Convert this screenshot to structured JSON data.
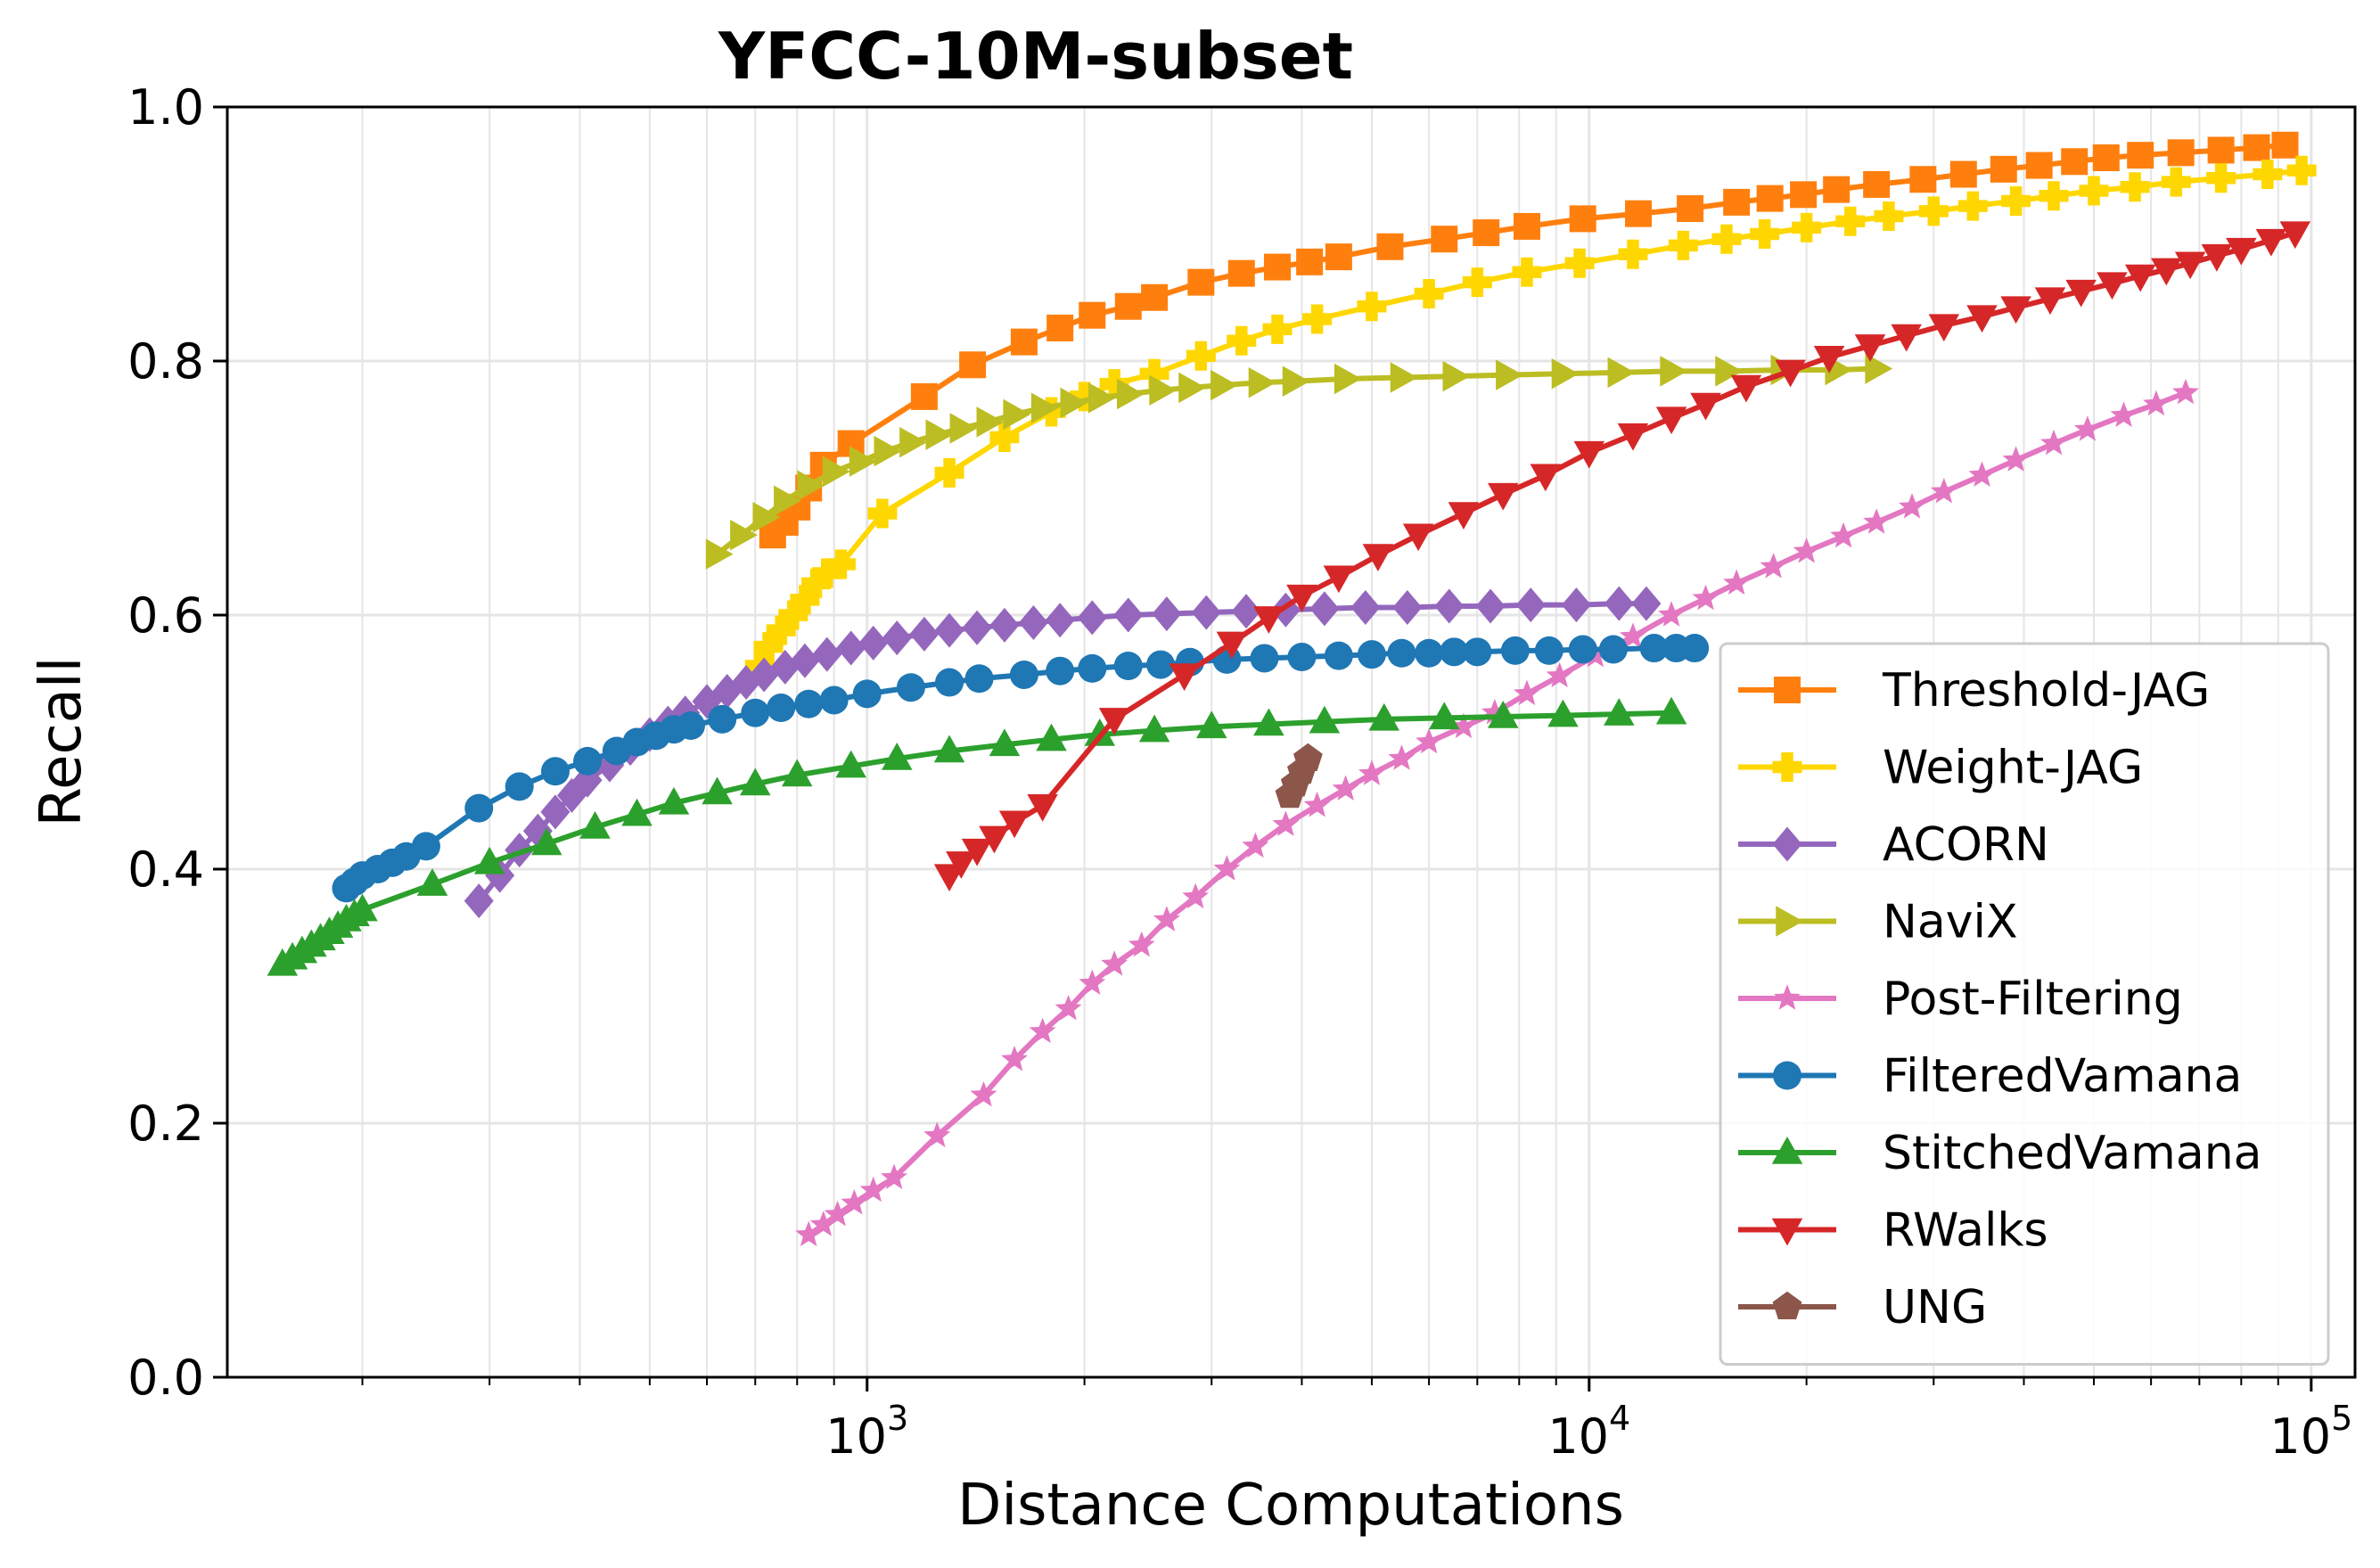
{
  "chart_data": {
    "type": "line",
    "title": "YFCC-10M-subset",
    "xlabel": "Distance Computations",
    "ylabel": "Recall",
    "xscale": "log",
    "xlim": [
      130,
      115000
    ],
    "ylim": [
      0.0,
      1.0
    ],
    "grid": true,
    "legend_position": "lower-right",
    "x_ticks": [
      {
        "value": 1000,
        "base": "10",
        "exp": "3"
      },
      {
        "value": 10000,
        "base": "10",
        "exp": "4"
      },
      {
        "value": 100000,
        "base": "10",
        "exp": "5"
      }
    ],
    "y_ticks": [
      {
        "value": 0.0,
        "label": "0.0"
      },
      {
        "value": 0.2,
        "label": "0.2"
      },
      {
        "value": 0.4,
        "label": "0.4"
      },
      {
        "value": 0.6,
        "label": "0.6"
      },
      {
        "value": 0.8,
        "label": "0.8"
      },
      {
        "value": 1.0,
        "label": "1.0"
      }
    ],
    "series": [
      {
        "name": "Threshold-JAG",
        "color": "#ff7f0e",
        "marker": "square",
        "x": [
          740,
          770,
          800,
          830,
          870,
          950,
          1200,
          1400,
          1650,
          1850,
          2050,
          2300,
          2500,
          2900,
          3300,
          3700,
          4100,
          4500,
          5300,
          6300,
          7200,
          8200,
          9800,
          11700,
          13800,
          16000,
          17800,
          19800,
          22000,
          25000,
          29000,
          33000,
          37500,
          42000,
          47000,
          52000,
          58000,
          66000,
          75000,
          84000,
          92000
        ],
        "y": [
          0.663,
          0.673,
          0.685,
          0.7,
          0.718,
          0.735,
          0.772,
          0.797,
          0.815,
          0.826,
          0.836,
          0.843,
          0.85,
          0.862,
          0.869,
          0.874,
          0.878,
          0.882,
          0.89,
          0.896,
          0.901,
          0.906,
          0.912,
          0.916,
          0.92,
          0.925,
          0.928,
          0.931,
          0.935,
          0.939,
          0.943,
          0.947,
          0.951,
          0.954,
          0.957,
          0.96,
          0.962,
          0.964,
          0.966,
          0.968,
          0.97
        ]
      },
      {
        "name": "Weight-JAG",
        "color": "#ffd700",
        "marker": "plus",
        "x": [
          710,
          730,
          760,
          790,
          820,
          850,
          880,
          920,
          1050,
          1300,
          1550,
          1800,
          2000,
          2200,
          2500,
          2900,
          3300,
          3700,
          4200,
          5000,
          6000,
          7000,
          8200,
          9700,
          11500,
          13500,
          15500,
          17500,
          20000,
          23000,
          26000,
          30000,
          34000,
          39000,
          44000,
          50000,
          57000,
          65000,
          75000,
          87000,
          97000
        ],
        "y": [
          0.56,
          0.575,
          0.588,
          0.6,
          0.612,
          0.625,
          0.633,
          0.64,
          0.68,
          0.712,
          0.74,
          0.76,
          0.772,
          0.782,
          0.79,
          0.804,
          0.816,
          0.825,
          0.833,
          0.843,
          0.853,
          0.862,
          0.87,
          0.877,
          0.884,
          0.891,
          0.896,
          0.9,
          0.905,
          0.91,
          0.914,
          0.918,
          0.922,
          0.926,
          0.93,
          0.934,
          0.937,
          0.941,
          0.944,
          0.947,
          0.95
        ]
      },
      {
        "name": "ACORN",
        "color": "#9467bd",
        "marker": "diamond",
        "x": [
          290,
          310,
          330,
          350,
          370,
          390,
          410,
          440,
          470,
          500,
          530,
          560,
          600,
          640,
          680,
          720,
          770,
          820,
          880,
          950,
          1020,
          1100,
          1200,
          1300,
          1420,
          1550,
          1700,
          1850,
          2050,
          2300,
          2600,
          2950,
          3350,
          3800,
          4300,
          4900,
          5600,
          6400,
          7300,
          8300,
          9600,
          11000,
          12000
        ],
        "y": [
          0.375,
          0.395,
          0.415,
          0.43,
          0.445,
          0.458,
          0.47,
          0.482,
          0.495,
          0.506,
          0.515,
          0.523,
          0.532,
          0.54,
          0.547,
          0.553,
          0.559,
          0.564,
          0.569,
          0.574,
          0.578,
          0.582,
          0.585,
          0.588,
          0.59,
          0.592,
          0.594,
          0.596,
          0.598,
          0.6,
          0.601,
          0.602,
          0.603,
          0.604,
          0.605,
          0.606,
          0.606,
          0.607,
          0.607,
          0.608,
          0.608,
          0.609,
          0.609
        ]
      },
      {
        "name": "NaviX",
        "color": "#bcbd22",
        "marker": "triangle-right",
        "x": [
          620,
          670,
          720,
          770,
          830,
          900,
          980,
          1060,
          1150,
          1250,
          1350,
          1470,
          1600,
          1750,
          1920,
          2100,
          2300,
          2550,
          2800,
          3100,
          3500,
          3900,
          4600,
          5500,
          6500,
          7700,
          9200,
          11000,
          13000,
          15500,
          18500,
          22000,
          25000
        ],
        "y": [
          0.648,
          0.663,
          0.677,
          0.69,
          0.702,
          0.713,
          0.721,
          0.729,
          0.736,
          0.742,
          0.747,
          0.752,
          0.758,
          0.763,
          0.767,
          0.771,
          0.774,
          0.777,
          0.779,
          0.781,
          0.783,
          0.784,
          0.786,
          0.787,
          0.788,
          0.789,
          0.79,
          0.791,
          0.792,
          0.792,
          0.793,
          0.793,
          0.794
        ]
      },
      {
        "name": "Post-Filtering",
        "color": "#e377c2",
        "marker": "star",
        "x": [
          830,
          870,
          910,
          960,
          1020,
          1090,
          1250,
          1450,
          1600,
          1750,
          1900,
          2050,
          2200,
          2400,
          2600,
          2850,
          3150,
          3450,
          3800,
          4200,
          4600,
          5000,
          5500,
          6000,
          6700,
          7400,
          8200,
          9100,
          10200,
          11500,
          13000,
          14500,
          16000,
          18000,
          20000,
          22500,
          25000,
          28000,
          31000,
          35000,
          39000,
          44000,
          49000,
          55000,
          61000,
          67000
        ],
        "y": [
          0.112,
          0.12,
          0.128,
          0.137,
          0.147,
          0.157,
          0.19,
          0.222,
          0.25,
          0.272,
          0.29,
          0.31,
          0.325,
          0.34,
          0.36,
          0.378,
          0.4,
          0.418,
          0.435,
          0.45,
          0.463,
          0.475,
          0.487,
          0.5,
          0.512,
          0.523,
          0.538,
          0.552,
          0.568,
          0.583,
          0.6,
          0.613,
          0.625,
          0.638,
          0.65,
          0.662,
          0.673,
          0.685,
          0.697,
          0.71,
          0.722,
          0.735,
          0.746,
          0.757,
          0.766,
          0.775
        ]
      },
      {
        "name": "FilteredVamana",
        "color": "#1f77b4",
        "marker": "circle",
        "x": [
          190,
          195,
          200,
          210,
          220,
          230,
          245,
          290,
          330,
          370,
          410,
          450,
          480,
          510,
          540,
          570,
          630,
          700,
          760,
          830,
          900,
          1000,
          1150,
          1300,
          1430,
          1650,
          1850,
          2050,
          2300,
          2550,
          2800,
          3150,
          3550,
          4000,
          4500,
          5000,
          5500,
          6000,
          6500,
          7000,
          7900,
          8800,
          9800,
          10800,
          12300,
          13200,
          14000
        ],
        "y": [
          0.385,
          0.39,
          0.395,
          0.4,
          0.405,
          0.41,
          0.418,
          0.448,
          0.465,
          0.477,
          0.485,
          0.493,
          0.5,
          0.505,
          0.51,
          0.513,
          0.518,
          0.523,
          0.527,
          0.53,
          0.533,
          0.538,
          0.543,
          0.547,
          0.55,
          0.553,
          0.556,
          0.558,
          0.56,
          0.561,
          0.563,
          0.565,
          0.566,
          0.567,
          0.568,
          0.569,
          0.57,
          0.57,
          0.571,
          0.571,
          0.572,
          0.572,
          0.573,
          0.573,
          0.574,
          0.574,
          0.574
        ]
      },
      {
        "name": "StitchedVamana",
        "color": "#2ca02c",
        "marker": "triangle-up",
        "x": [
          155,
          160,
          165,
          170,
          175,
          180,
          185,
          190,
          195,
          200,
          250,
          300,
          360,
          420,
          480,
          540,
          620,
          700,
          800,
          950,
          1100,
          1300,
          1550,
          1800,
          2100,
          2500,
          3000,
          3600,
          4300,
          5200,
          6300,
          7600,
          9200,
          11000,
          13000
        ],
        "y": [
          0.325,
          0.33,
          0.335,
          0.34,
          0.345,
          0.35,
          0.355,
          0.36,
          0.364,
          0.368,
          0.388,
          0.405,
          0.42,
          0.433,
          0.443,
          0.452,
          0.46,
          0.467,
          0.474,
          0.481,
          0.487,
          0.493,
          0.498,
          0.502,
          0.506,
          0.509,
          0.512,
          0.514,
          0.516,
          0.518,
          0.519,
          0.52,
          0.521,
          0.522,
          0.523
        ]
      },
      {
        "name": "RWalks",
        "color": "#d62728",
        "marker": "triangle-down",
        "x": [
          1300,
          1350,
          1420,
          1500,
          1600,
          1750,
          2200,
          2750,
          3200,
          3600,
          4000,
          4500,
          5100,
          5800,
          6700,
          7600,
          8700,
          10000,
          11500,
          13000,
          14500,
          16500,
          19000,
          21500,
          24500,
          27500,
          31000,
          35000,
          39000,
          43500,
          48000,
          53000,
          58000,
          63000,
          68000,
          74000,
          80000,
          88000,
          95000
        ],
        "y": [
          0.395,
          0.405,
          0.415,
          0.425,
          0.437,
          0.45,
          0.518,
          0.553,
          0.578,
          0.598,
          0.615,
          0.63,
          0.647,
          0.663,
          0.68,
          0.695,
          0.71,
          0.728,
          0.742,
          0.755,
          0.766,
          0.78,
          0.792,
          0.803,
          0.812,
          0.82,
          0.828,
          0.835,
          0.842,
          0.849,
          0.855,
          0.861,
          0.867,
          0.872,
          0.877,
          0.883,
          0.888,
          0.895,
          0.901
        ]
      },
      {
        "name": "UNG",
        "color": "#8c564b",
        "marker": "pentagon",
        "x": [
          3850,
          3920,
          4000,
          4080
        ],
        "y": [
          0.458,
          0.467,
          0.477,
          0.487
        ]
      }
    ]
  }
}
